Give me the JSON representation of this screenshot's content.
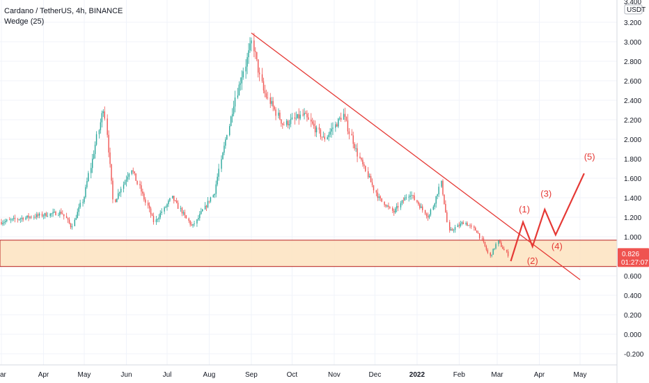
{
  "header": {
    "symbol_line": "Cardano / TetherUS, 4h, BINANCE",
    "indicator": "Wedge (25)"
  },
  "price_axis": {
    "currency": "USDT",
    "top_label": "3.400",
    "labels": [
      "3.200",
      "3.000",
      "2.800",
      "2.600",
      "2.400",
      "2.200",
      "2.000",
      "1.800",
      "1.600",
      "1.400",
      "1.200",
      "1.000",
      "0.600",
      "0.400",
      "0.200",
      "0.000",
      "-0.200"
    ],
    "current_price": "0.826",
    "countdown": "01:27:07"
  },
  "colors": {
    "up": "#26a69a",
    "down": "#ef5350",
    "trendline": "#e53935",
    "zone_fill": "#fde3c0",
    "zone_border": "#b71c1c",
    "price_tag": "#ef5350"
  },
  "chart_data": {
    "type": "candlestick",
    "title": "Cardano / TetherUS, 4h, BINANCE",
    "timeframe": "4h",
    "indicator": "Wedge (25)",
    "x_labels": [
      "ar",
      "Apr",
      "May",
      "Jun",
      "Jul",
      "Aug",
      "Sep",
      "Oct",
      "Nov",
      "Dec",
      "2022",
      "Feb",
      "Mar",
      "Apr",
      "May"
    ],
    "ylim": [
      -0.25,
      3.42
    ],
    "y_ticks": [
      3.2,
      3.0,
      2.8,
      2.6,
      2.4,
      2.2,
      2.0,
      1.8,
      1.6,
      1.4,
      1.2,
      1.0,
      0.6,
      0.4,
      0.2,
      0.0,
      -0.2
    ],
    "current_price": 0.826,
    "price_path": [
      {
        "date": "2021-03-01",
        "price": 1.15
      },
      {
        "date": "2021-03-20",
        "price": 1.2
      },
      {
        "date": "2021-04-15",
        "price": 1.25
      },
      {
        "date": "2021-04-22",
        "price": 1.1
      },
      {
        "date": "2021-05-01",
        "price": 1.4
      },
      {
        "date": "2021-05-16",
        "price": 2.35
      },
      {
        "date": "2021-05-23",
        "price": 1.35
      },
      {
        "date": "2021-06-05",
        "price": 1.7
      },
      {
        "date": "2021-06-22",
        "price": 1.15
      },
      {
        "date": "2021-07-05",
        "price": 1.4
      },
      {
        "date": "2021-07-20",
        "price": 1.1
      },
      {
        "date": "2021-08-05",
        "price": 1.45
      },
      {
        "date": "2021-08-20",
        "price": 2.4
      },
      {
        "date": "2021-09-02",
        "price": 3.0
      },
      {
        "date": "2021-09-10",
        "price": 2.5
      },
      {
        "date": "2021-09-25",
        "price": 2.15
      },
      {
        "date": "2021-10-10",
        "price": 2.25
      },
      {
        "date": "2021-10-25",
        "price": 2.0
      },
      {
        "date": "2021-11-08",
        "price": 2.25
      },
      {
        "date": "2021-11-20",
        "price": 1.8
      },
      {
        "date": "2021-12-04",
        "price": 1.4
      },
      {
        "date": "2021-12-15",
        "price": 1.25
      },
      {
        "date": "2021-12-27",
        "price": 1.45
      },
      {
        "date": "2022-01-10",
        "price": 1.2
      },
      {
        "date": "2022-01-19",
        "price": 1.55
      },
      {
        "date": "2022-01-25",
        "price": 1.05
      },
      {
        "date": "2022-02-05",
        "price": 1.15
      },
      {
        "date": "2022-02-15",
        "price": 1.05
      },
      {
        "date": "2022-02-24",
        "price": 0.8
      },
      {
        "date": "2022-03-02",
        "price": 0.95
      },
      {
        "date": "2022-03-10",
        "price": 0.8
      }
    ],
    "trendline": [
      {
        "date": "2021-09-01",
        "price": 3.09
      },
      {
        "date": "2022-05-01",
        "price": 0.56
      }
    ],
    "support_zone": {
      "low": 0.695,
      "high": 0.965
    },
    "projection": [
      {
        "date": "2022-03-11",
        "price": 0.75
      },
      {
        "date": "2022-03-20",
        "price": 1.15
      },
      {
        "date": "2022-03-27",
        "price": 0.9
      },
      {
        "date": "2022-04-05",
        "price": 1.28
      },
      {
        "date": "2022-04-13",
        "price": 1.02
      },
      {
        "date": "2022-05-04",
        "price": 1.65
      }
    ],
    "wave_labels": [
      {
        "text": "(1)",
        "date": "2022-03-21",
        "price": 1.25
      },
      {
        "text": "(2)",
        "date": "2022-03-27",
        "price": 0.72
      },
      {
        "text": "(3)",
        "date": "2022-04-06",
        "price": 1.41
      },
      {
        "text": "(4)",
        "date": "2022-04-14",
        "price": 0.87
      },
      {
        "text": "(5)",
        "date": "2022-05-08",
        "price": 1.79
      }
    ]
  }
}
